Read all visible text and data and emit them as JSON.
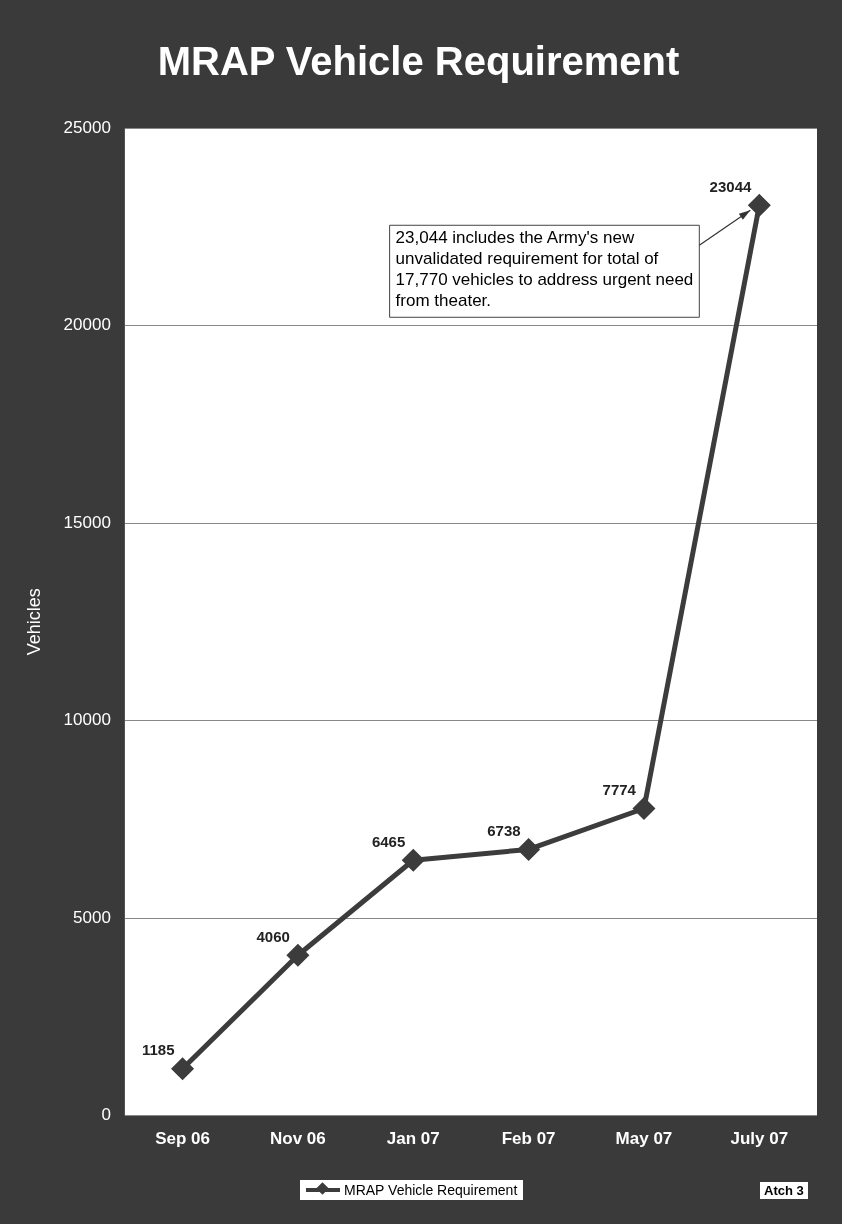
{
  "chart_data": {
    "type": "line",
    "title": "MRAP Vehicle Requirement",
    "ylabel": "Vehicles",
    "categories": [
      "Sep 06",
      "Nov 06",
      "Jan 07",
      "Feb 07",
      "May 07",
      "July 07"
    ],
    "series": [
      {
        "name": "MRAP Vehicle Requirement",
        "color": "#3c3c3c",
        "values": [
          1185,
          4060,
          6465,
          6738,
          7774,
          23044
        ]
      }
    ],
    "ylim": [
      0,
      25000
    ],
    "yticks": [
      0,
      5000,
      10000,
      15000,
      20000,
      25000
    ],
    "grid": "y",
    "legend": "bottom",
    "marker": "diamond",
    "line_style": "solid",
    "data_labels": true,
    "annotations": [
      "23,044 includes the Army's new unvalidated requirement for total of 17,770 vehicles to address urgent need from theater.",
      "Atch 3"
    ]
  }
}
